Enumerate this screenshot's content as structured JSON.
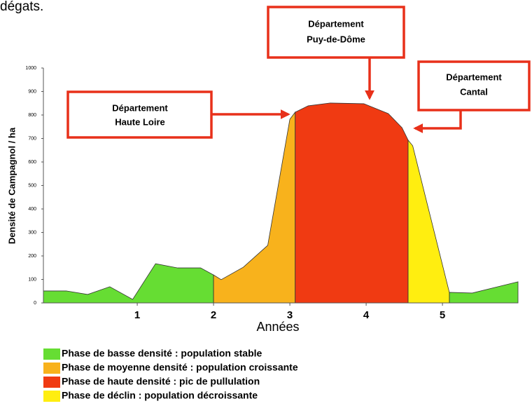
{
  "caption": "dégats.",
  "chart_data": {
    "type": "area",
    "ylabel": "Densité de Campagnol / ha",
    "xlabel": "Années",
    "xlim": [
      -0.23,
      5.99
    ],
    "ylim": [
      0,
      1000
    ],
    "xticks": [
      1,
      2,
      3,
      4,
      5
    ],
    "yticks": [
      0,
      100,
      200,
      300,
      400,
      500,
      600,
      700,
      800,
      900,
      1000
    ],
    "series": [
      {
        "name": "Phase de basse densité : population stable",
        "color": "#66dd33",
        "x": [
          -0.23,
          0.07,
          0.35,
          0.64,
          0.94,
          1.24,
          1.53,
          1.83,
          2.0,
          null,
          5.09,
          5.39,
          5.69,
          5.99
        ],
        "values": [
          51,
          51,
          36,
          69,
          15,
          167,
          149,
          149,
          119,
          null,
          45,
          42,
          66,
          90
        ]
      },
      {
        "name": "Phase de moyenne densité : population croissante",
        "color": "#f8b21c",
        "x": [
          2.0,
          2.1,
          2.39,
          2.71,
          3.0,
          3.07
        ],
        "values": [
          119,
          99,
          152,
          245,
          782,
          812
        ]
      },
      {
        "name": "Phase de haute densité : pic de pullulation",
        "color": "#f03a12",
        "x": [
          3.07,
          3.24,
          3.53,
          3.97,
          4.29,
          4.47,
          4.55
        ],
        "values": [
          812,
          839,
          851,
          848,
          806,
          746,
          693
        ]
      },
      {
        "name": "Phase de déclin : population décroissante",
        "color": "#ffee10",
        "x": [
          4.55,
          4.61,
          5.09
        ],
        "values": [
          693,
          669,
          45
        ]
      }
    ],
    "annotations": [
      {
        "lines": [
          "Département",
          "Haute Loire"
        ]
      },
      {
        "lines": [
          "Département",
          "Puy-de-Dôme"
        ]
      },
      {
        "lines": [
          "Département",
          "Cantal"
        ]
      }
    ]
  }
}
